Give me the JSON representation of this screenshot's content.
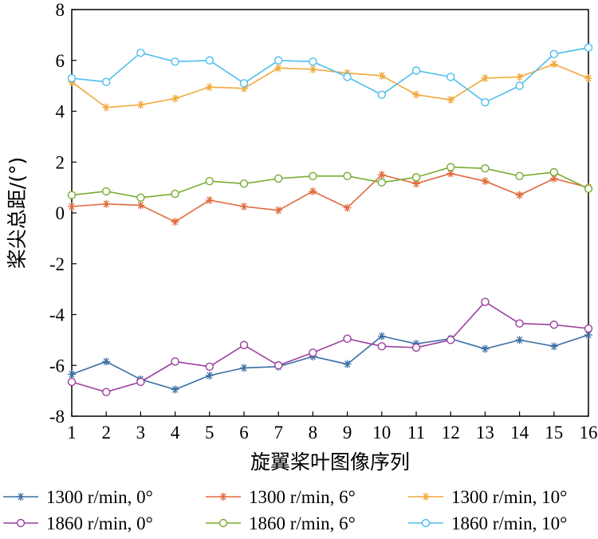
{
  "chart_data": {
    "type": "line",
    "title": "",
    "xlabel": "旋翼桨叶图像序列",
    "ylabel": "桨尖总距/(°)",
    "xlim": [
      1,
      16
    ],
    "ylim": [
      -8,
      8
    ],
    "xticks": [
      "1",
      "2",
      "3",
      "4",
      "5",
      "6",
      "7",
      "8",
      "9",
      "10",
      "11",
      "12",
      "13",
      "14",
      "15",
      "16"
    ],
    "yticks": [
      "-8",
      "-6",
      "-4",
      "-2",
      "0",
      "2",
      "4",
      "6",
      "8"
    ],
    "ytick_values": [
      -8,
      -6,
      -4,
      -2,
      0,
      2,
      4,
      6,
      8
    ],
    "x": [
      1,
      2,
      3,
      4,
      5,
      6,
      7,
      8,
      9,
      10,
      11,
      12,
      13,
      14,
      15,
      16
    ],
    "legend_position": "bottom",
    "series": [
      {
        "name": "1300 r/min, 0°",
        "color": "#3A6EA5",
        "marker": "star",
        "values": [
          -6.35,
          -5.85,
          -6.55,
          -6.95,
          -6.4,
          -6.1,
          -6.05,
          -5.65,
          -5.95,
          -4.85,
          -5.15,
          -4.95,
          -5.35,
          -5.0,
          -5.25,
          -4.8
        ]
      },
      {
        "name": "1300 r/min, 6°",
        "color": "#E06A3C",
        "marker": "star",
        "values": [
          0.25,
          0.35,
          0.3,
          -0.35,
          0.5,
          0.25,
          0.1,
          0.85,
          0.2,
          1.5,
          1.15,
          1.55,
          1.25,
          0.7,
          1.35,
          1.0
        ]
      },
      {
        "name": "1300 r/min, 10°",
        "color": "#F1A93B",
        "marker": "star",
        "values": [
          5.15,
          4.15,
          4.25,
          4.5,
          4.95,
          4.9,
          5.7,
          5.65,
          5.5,
          5.4,
          4.65,
          4.45,
          5.3,
          5.35,
          5.85,
          5.3
        ]
      },
      {
        "name": "1860 r/min, 0°",
        "color": "#9B3FA0",
        "marker": "circle",
        "values": [
          -6.65,
          -7.05,
          -6.65,
          -5.85,
          -6.05,
          -5.2,
          -6.0,
          -5.5,
          -4.95,
          -5.25,
          -5.3,
          -5.0,
          -3.5,
          -4.35,
          -4.4,
          -4.55
        ]
      },
      {
        "name": "1860 r/min, 6°",
        "color": "#77AC30",
        "marker": "circle",
        "values": [
          0.7,
          0.85,
          0.6,
          0.75,
          1.25,
          1.15,
          1.35,
          1.45,
          1.45,
          1.2,
          1.4,
          1.8,
          1.75,
          1.45,
          1.6,
          0.95
        ]
      },
      {
        "name": "1860 r/min, 10°",
        "color": "#4DBEEE",
        "marker": "circle",
        "values": [
          5.3,
          5.15,
          6.3,
          5.95,
          6.0,
          5.1,
          6.0,
          5.95,
          5.35,
          4.65,
          5.6,
          5.35,
          4.35,
          5.0,
          6.25,
          6.5
        ]
      }
    ]
  }
}
